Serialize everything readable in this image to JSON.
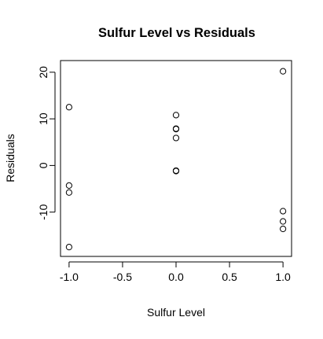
{
  "chart_data": {
    "type": "scatter",
    "title": "Sulfur Level vs Residuals",
    "xlabel": "Sulfur Level",
    "ylabel": "Residuals",
    "xlim": [
      -1.08,
      1.08
    ],
    "ylim": [
      -19.5,
      22.5
    ],
    "x_ticks": [
      -1.0,
      -0.5,
      0.0,
      0.5,
      1.0
    ],
    "x_tick_labels": [
      "-1.0",
      "-0.5",
      "0.0",
      "0.5",
      "1.0"
    ],
    "y_ticks": [
      -10,
      0,
      10,
      20
    ],
    "y_tick_labels": [
      "-10",
      "0",
      "10",
      "20"
    ],
    "grid": false,
    "legend": "none",
    "marker": "open-circle",
    "colors": {
      "points": "#000000",
      "axes": "#000000",
      "background": "#ffffff"
    },
    "points": [
      {
        "x": -1.0,
        "y": 12.5
      },
      {
        "x": -1.0,
        "y": -4.3
      },
      {
        "x": -1.0,
        "y": -5.8
      },
      {
        "x": -1.0,
        "y": -17.5
      },
      {
        "x": 0.0,
        "y": 10.8
      },
      {
        "x": 0.0,
        "y": 7.9
      },
      {
        "x": 0.0,
        "y": 7.8
      },
      {
        "x": 0.0,
        "y": 5.9
      },
      {
        "x": 0.0,
        "y": -1.2
      },
      {
        "x": 0.0,
        "y": -1.1
      },
      {
        "x": 1.0,
        "y": 20.2
      },
      {
        "x": 1.0,
        "y": -9.8
      },
      {
        "x": 1.0,
        "y": -12.0
      },
      {
        "x": 1.0,
        "y": -13.6
      }
    ]
  }
}
